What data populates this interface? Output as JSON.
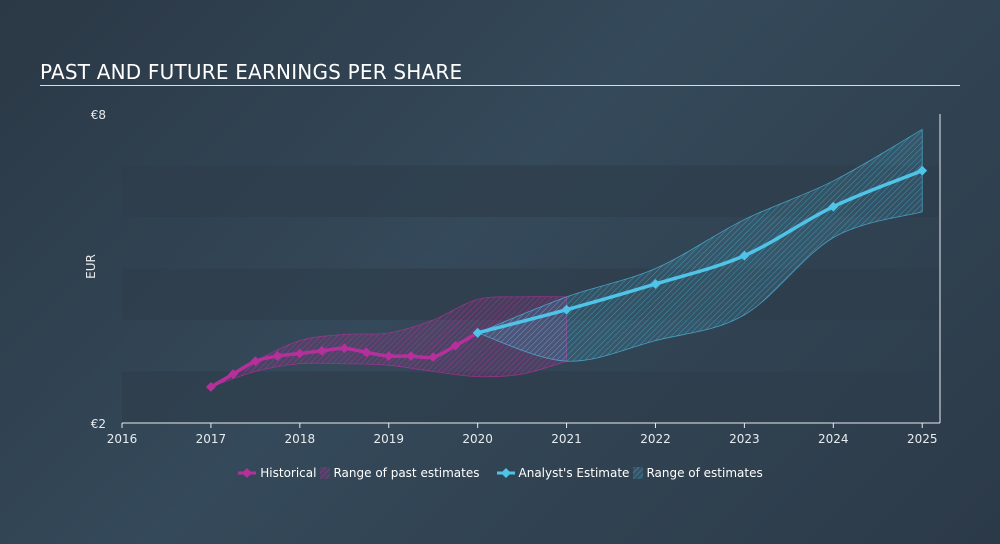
{
  "header": {
    "title": "PAST AND FUTURE EARNINGS PER SHARE"
  },
  "chart_data": {
    "type": "line",
    "title": "PAST AND FUTURE EARNINGS PER SHARE",
    "ylabel": "EUR",
    "ylim": [
      2,
      8
    ],
    "xlim": [
      2016,
      2025.2
    ],
    "y_tick_labels": [
      "€8",
      "€2"
    ],
    "y_ticks": [
      8,
      2
    ],
    "x_ticks": [
      2016,
      2017,
      2018,
      2019,
      2020,
      2021,
      2022,
      2023,
      2024,
      2025
    ],
    "x_tick_labels": [
      "2016",
      "2017",
      "2018",
      "2019",
      "2020",
      "2021",
      "2022",
      "2023",
      "2024",
      "2025"
    ],
    "series": [
      {
        "name": "Historical",
        "color": "#b5309b",
        "x": [
          2017.0,
          2017.25,
          2017.5,
          2017.75,
          2018.0,
          2018.25,
          2018.5,
          2018.75,
          2019.0,
          2019.25,
          2019.5,
          2019.75,
          2020.0
        ],
        "y": [
          2.7,
          2.95,
          3.2,
          3.3,
          3.35,
          3.4,
          3.45,
          3.37,
          3.3,
          3.3,
          3.28,
          3.5,
          3.75
        ]
      },
      {
        "name": "Range of past estimates",
        "color": "#b5309b",
        "x": [
          2017.0,
          2017.5,
          2018.0,
          2018.5,
          2019.0,
          2019.5,
          2020.0,
          2020.5,
          2021.0
        ],
        "upper": [
          2.7,
          3.2,
          3.6,
          3.72,
          3.75,
          4.0,
          4.4,
          4.45,
          4.45
        ],
        "lower": [
          2.7,
          3.0,
          3.15,
          3.15,
          3.12,
          3.0,
          2.9,
          2.95,
          3.2
        ]
      },
      {
        "name": "Analyst's Estimate",
        "color": "#4fc3e8",
        "x": [
          2020.0,
          2021.0,
          2022.0,
          2023.0,
          2024.0,
          2025.0
        ],
        "y": [
          3.75,
          4.2,
          4.7,
          5.25,
          6.2,
          6.9
        ]
      },
      {
        "name": "Range of estimates",
        "color": "#4fc3e8",
        "x": [
          2020.0,
          2021.0,
          2022.0,
          2023.0,
          2024.0,
          2025.0
        ],
        "upper": [
          3.75,
          4.45,
          5.0,
          5.95,
          6.7,
          7.7
        ],
        "lower": [
          3.75,
          3.2,
          3.6,
          4.1,
          5.6,
          6.1
        ]
      }
    ],
    "colors": {
      "historical": "#b5309b",
      "estimate": "#4fc3e8",
      "band_dark": "#2f3e4c"
    },
    "grid": false,
    "legend_position": "bottom-center"
  },
  "legend": {
    "historical": "Historical",
    "past_range": "Range of past estimates",
    "estimate": "Analyst's Estimate",
    "future_range": "Range of estimates"
  }
}
